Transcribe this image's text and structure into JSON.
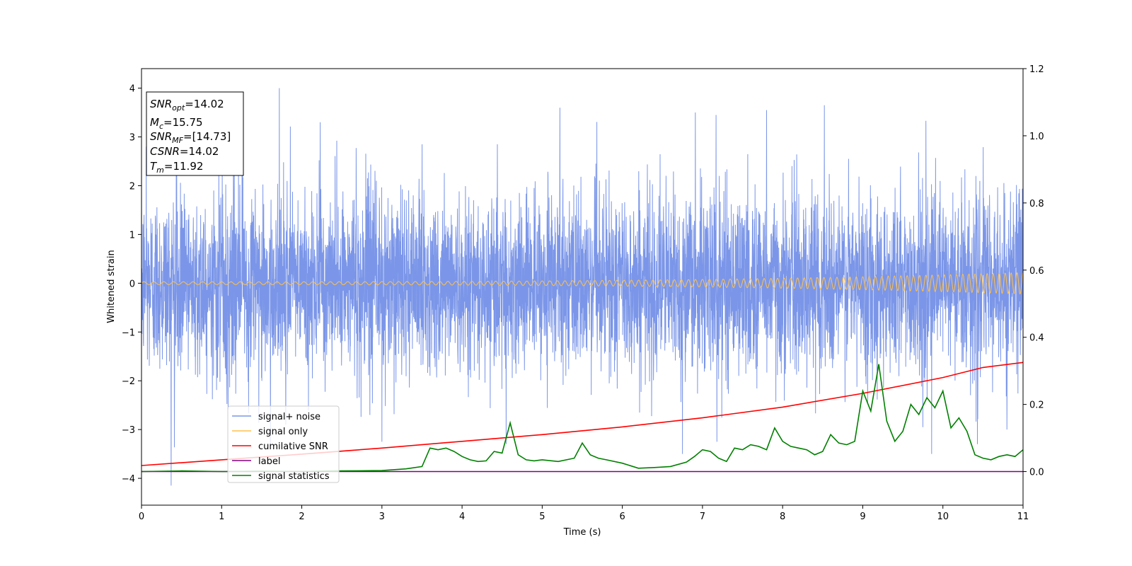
{
  "chart_data": {
    "type": "line",
    "xlabel": "Time (s)",
    "ylabel": "Whitened strain",
    "xlim": [
      0,
      11
    ],
    "ylim": [
      -4.55,
      4.4
    ],
    "y2lim": [
      -0.1,
      1.2
    ],
    "x_ticks": [
      "0",
      "1",
      "2",
      "3",
      "4",
      "5",
      "6",
      "7",
      "8",
      "9",
      "10",
      "11"
    ],
    "y_ticks": [
      "−4",
      "−3",
      "−2",
      "−1",
      "0",
      "1",
      "2",
      "3",
      "4"
    ],
    "y2_ticks": [
      "0.0",
      "0.2",
      "0.4",
      "0.6",
      "0.8",
      "1.0",
      "1.2"
    ],
    "legend_location": "lower-left",
    "grid": false,
    "info_box": [
      {
        "var": "SNR",
        "sub": "opt",
        "val": "=14.02"
      },
      {
        "var": "M",
        "sub": "c",
        "val": "=15.75"
      },
      {
        "var": "SNR",
        "sub": "MF",
        "val": "=[14.73]"
      },
      {
        "var": "CSNR",
        "sub": "",
        "val": "=14.02"
      },
      {
        "var": "T",
        "sub": "m",
        "val": "=11.92"
      }
    ],
    "series": [
      {
        "name": "signal+ noise",
        "axis": "left",
        "color": "#7b96e8",
        "style": "noise",
        "amplitude_std": 0.92,
        "peak_points": [
          [
            0.06,
            2.8
          ],
          [
            0.37,
            -4.15
          ],
          [
            1.72,
            4.0
          ],
          [
            1.8,
            -2.9
          ],
          [
            2.23,
            3.3
          ],
          [
            2.85,
            -2.7
          ],
          [
            3.0,
            -3.25
          ],
          [
            4.55,
            -3.3
          ],
          [
            5.22,
            3.6
          ],
          [
            6.75,
            -3.5
          ],
          [
            6.91,
            3.5
          ],
          [
            7.17,
            3.45
          ],
          [
            7.18,
            -3.25
          ],
          [
            7.8,
            3.55
          ],
          [
            8.52,
            3.65
          ],
          [
            9.86,
            -3.5
          ],
          [
            10.43,
            -3.3
          ],
          [
            10.8,
            -3.0
          ]
        ]
      },
      {
        "name": "signal only",
        "axis": "left",
        "color": "#ffc04d",
        "style": "chirp",
        "amplitude_start": 0.03,
        "amplitude_end": 0.22
      },
      {
        "name": "cumilative SNR",
        "axis": "right",
        "color": "#ff0000",
        "x": [
          0,
          1,
          2,
          3,
          4,
          5,
          6,
          7,
          8,
          9,
          10,
          10.5,
          11
        ],
        "y": [
          0.018,
          0.035,
          0.052,
          0.07,
          0.09,
          0.11,
          0.133,
          0.16,
          0.192,
          0.233,
          0.28,
          0.31,
          0.325
        ]
      },
      {
        "name": "label",
        "axis": "right",
        "color": "#800080",
        "x": [
          0,
          11
        ],
        "y": [
          0.0,
          0.0
        ]
      },
      {
        "name": "signal statistics",
        "axis": "right",
        "color": "#008000",
        "x": [
          0,
          0.5,
          1,
          1.5,
          2,
          2.5,
          3,
          3.3,
          3.5,
          3.6,
          3.7,
          3.8,
          3.9,
          4.0,
          4.1,
          4.2,
          4.3,
          4.4,
          4.5,
          4.6,
          4.7,
          4.8,
          4.9,
          5.0,
          5.2,
          5.4,
          5.5,
          5.6,
          5.7,
          5.8,
          6.0,
          6.2,
          6.4,
          6.6,
          6.8,
          6.9,
          7.0,
          7.1,
          7.2,
          7.3,
          7.4,
          7.5,
          7.6,
          7.7,
          7.8,
          7.9,
          8.0,
          8.1,
          8.2,
          8.3,
          8.4,
          8.5,
          8.6,
          8.7,
          8.8,
          8.9,
          9.0,
          9.1,
          9.2,
          9.3,
          9.4,
          9.5,
          9.6,
          9.7,
          9.8,
          9.9,
          10.0,
          10.1,
          10.2,
          10.3,
          10.4,
          10.5,
          10.6,
          10.7,
          10.8,
          10.9,
          11.0
        ],
        "y": [
          0.0,
          0.002,
          0.0,
          0.001,
          0.0,
          0.002,
          0.003,
          0.008,
          0.015,
          0.07,
          0.065,
          0.07,
          0.06,
          0.045,
          0.035,
          0.03,
          0.032,
          0.06,
          0.055,
          0.145,
          0.05,
          0.035,
          0.032,
          0.035,
          0.03,
          0.04,
          0.085,
          0.05,
          0.04,
          0.035,
          0.025,
          0.01,
          0.012,
          0.015,
          0.028,
          0.045,
          0.065,
          0.06,
          0.04,
          0.03,
          0.07,
          0.065,
          0.08,
          0.075,
          0.065,
          0.13,
          0.09,
          0.075,
          0.07,
          0.065,
          0.05,
          0.06,
          0.11,
          0.085,
          0.08,
          0.09,
          0.24,
          0.18,
          0.32,
          0.15,
          0.09,
          0.12,
          0.2,
          0.17,
          0.22,
          0.19,
          0.24,
          0.13,
          0.16,
          0.12,
          0.05,
          0.04,
          0.035,
          0.045,
          0.05,
          0.045,
          0.065
        ]
      }
    ]
  }
}
